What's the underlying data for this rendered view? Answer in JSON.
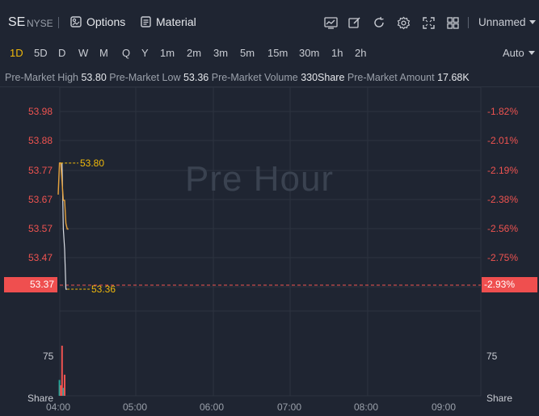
{
  "header": {
    "symbol": "SE",
    "exchange": "NYSE",
    "options_label": "Options",
    "material_label": "Material",
    "account_label": "Unnamed"
  },
  "timeframes": [
    "1D",
    "5D",
    "D",
    "W",
    "M",
    "Q",
    "Y",
    "1m",
    "2m",
    "3m",
    "5m",
    "15m",
    "30m",
    "1h",
    "2h"
  ],
  "active_timeframe": "1D",
  "auto_label": "Auto",
  "premarket": {
    "high_label": "Pre-Market High",
    "high_value": "53.80",
    "low_label": "Pre-Market Low",
    "low_value": "53.36",
    "volume_label": "Pre-Market Volume",
    "volume_value": "330Share",
    "amount_label": "Pre-Market Amount",
    "amount_value": "17.68K"
  },
  "watermark": "Pre Hour",
  "colors": {
    "up": "#26a69a",
    "down": "#ef5350",
    "accent": "#f0b90b",
    "line": "#e6a23c"
  },
  "chart_data": {
    "type": "line",
    "y_ticks": [
      "53.98",
      "53.88",
      "53.77",
      "53.67",
      "53.57",
      "53.47"
    ],
    "pct_ticks": [
      "-1.82%",
      "-2.01%",
      "-2.19%",
      "-2.38%",
      "-2.56%",
      "-2.75%"
    ],
    "current_price": "53.37",
    "current_pct": "-2.93%",
    "high_marker": "53.80",
    "low_marker": "53.36",
    "volume_tick": "75",
    "volume_label": "Share",
    "x_ticks": [
      "04:00",
      "05:00",
      "06:00",
      "07:00",
      "08:00",
      "09:00"
    ],
    "price_series": [
      {
        "t": "04:00",
        "v": 53.69
      },
      {
        "t": "04:01",
        "v": 53.8
      },
      {
        "t": "04:02",
        "v": 53.8
      },
      {
        "t": "04:04",
        "v": 53.67
      },
      {
        "t": "04:05",
        "v": 53.67
      },
      {
        "t": "04:06",
        "v": 53.59
      },
      {
        "t": "04:07",
        "v": 53.57
      },
      {
        "t": "04:08",
        "v": 53.57
      }
    ],
    "lower_series": [
      {
        "t": "04:03",
        "v": 53.8
      },
      {
        "t": "04:04",
        "v": 53.57
      },
      {
        "t": "04:05",
        "v": 53.5
      },
      {
        "t": "04:06",
        "v": 53.36
      },
      {
        "t": "04:07",
        "v": 53.36
      }
    ],
    "volume_bars": [
      {
        "t": "04:01",
        "v": 30,
        "dir": "up"
      },
      {
        "t": "04:02",
        "v": 20,
        "dir": "down"
      },
      {
        "t": "04:03",
        "v": 95,
        "dir": "down"
      },
      {
        "t": "04:04",
        "v": 15,
        "dir": "up"
      },
      {
        "t": "04:05",
        "v": 40,
        "dir": "down"
      }
    ]
  }
}
